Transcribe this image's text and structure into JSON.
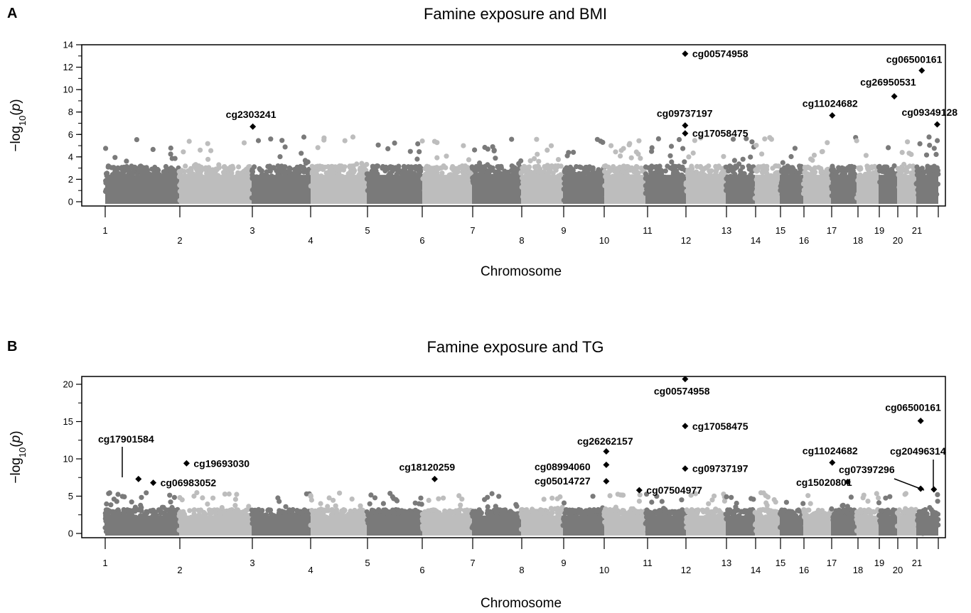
{
  "chart_data": [
    {
      "type": "scatter",
      "panel": "A",
      "title": "Famine exposure and BMI",
      "xlabel": "Chromosome",
      "ylabel": "-log10(p)",
      "ylim": [
        0,
        14
      ],
      "yticks": [
        0,
        2,
        4,
        6,
        8,
        10,
        12,
        14
      ],
      "chromosomes": [
        "1",
        "2",
        "3",
        "4",
        "5",
        "6",
        "7",
        "8",
        "9",
        "10",
        "11",
        "12",
        "13",
        "14",
        "15",
        "16",
        "17",
        "18",
        "19",
        "20",
        "21"
      ],
      "background_colors": [
        "#7a7a7a",
        "#bdbdbd"
      ],
      "background_y_typical": 3.2,
      "background_y_max": 5.8,
      "highlighted": [
        {
          "label": "cg2303241",
          "chr": 3,
          "pos": 0.02,
          "y": 6.7
        },
        {
          "label": "cg00574958",
          "chr": 11,
          "pos": 0.98,
          "y": 13.2
        },
        {
          "label": "cg09737197",
          "chr": 11,
          "pos": 0.98,
          "y": 6.8
        },
        {
          "label": "cg17058475",
          "chr": 11,
          "pos": 0.98,
          "y": 6.1
        },
        {
          "label": "cg11024682",
          "chr": 17,
          "pos": 0.05,
          "y": 7.7
        },
        {
          "label": "cg26950531",
          "chr": 19,
          "pos": 0.85,
          "y": 9.4
        },
        {
          "label": "cg06500161",
          "chr": 21,
          "pos": 0.25,
          "y": 11.7
        },
        {
          "label": "cg09349128",
          "chr": 21,
          "pos": 0.95,
          "y": 6.9
        }
      ]
    },
    {
      "type": "scatter",
      "panel": "B",
      "title": "Famine exposure and TG",
      "xlabel": "Chromosome",
      "ylabel": "-log10(p)",
      "ylim": [
        0,
        21
      ],
      "yticks": [
        0,
        5,
        10,
        15,
        20
      ],
      "chromosomes": [
        "1",
        "2",
        "3",
        "4",
        "5",
        "6",
        "7",
        "8",
        "9",
        "10",
        "11",
        "12",
        "13",
        "14",
        "15",
        "16",
        "17",
        "18",
        "19",
        "20",
        "21"
      ],
      "background_colors": [
        "#7a7a7a",
        "#bdbdbd"
      ],
      "background_y_typical": 3.2,
      "background_y_max": 5.5,
      "highlighted": [
        {
          "label": "cg17901584",
          "chr": 1,
          "pos": 0.45,
          "y": 7.3
        },
        {
          "label": "cg06983052",
          "chr": 1,
          "pos": 0.65,
          "y": 6.8
        },
        {
          "label": "cg19693030",
          "chr": 1,
          "pos": 1.1,
          "y": 9.4
        },
        {
          "label": "cg18120259",
          "chr": 6,
          "pos": 0.25,
          "y": 7.3
        },
        {
          "label": "cg26262157",
          "chr": 10,
          "pos": 0.05,
          "y": 11.0
        },
        {
          "label": "cg08994060",
          "chr": 10,
          "pos": 0.05,
          "y": 9.2
        },
        {
          "label": "cg05014727",
          "chr": 10,
          "pos": 0.05,
          "y": 7.0
        },
        {
          "label": "cg07504977",
          "chr": 10,
          "pos": 0.85,
          "y": 5.8
        },
        {
          "label": "cg00574958",
          "chr": 11,
          "pos": 0.98,
          "y": 20.7
        },
        {
          "label": "cg17058475",
          "chr": 11,
          "pos": 0.98,
          "y": 14.4
        },
        {
          "label": "cg09737197",
          "chr": 11,
          "pos": 0.98,
          "y": 8.7
        },
        {
          "label": "cg11024682",
          "chr": 17,
          "pos": 0.05,
          "y": 9.5
        },
        {
          "label": "cg15020801",
          "chr": 17,
          "pos": 0.65,
          "y": 6.9
        },
        {
          "label": "cg06500161",
          "chr": 21,
          "pos": 0.2,
          "y": 15.1
        },
        {
          "label": "cg07397296",
          "chr": 21,
          "pos": 0.2,
          "y": 6.0
        },
        {
          "label": "cg20496314",
          "chr": 21,
          "pos": 0.8,
          "y": 5.9
        }
      ]
    }
  ]
}
